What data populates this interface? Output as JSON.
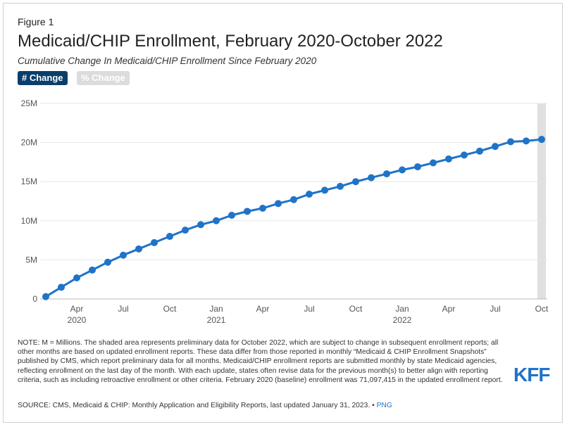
{
  "header": {
    "figure_label": "Figure 1",
    "title": "Medicaid/CHIP Enrollment, February 2020-October 2022",
    "subtitle": "Cumulative Change In Medicaid/CHIP Enrollment Since February 2020"
  },
  "toggles": {
    "count_label": "# Change",
    "percent_label": "% Change"
  },
  "footer": {
    "note": "NOTE: M = Millions. The shaded area represents preliminary data for October 2022, which are subject to change in subsequent enrollment reports; all other months are based on updated enrollment reports. These data differ from those reported in monthly “Medicaid & CHIP Enrollment Snapshots” published by CMS, which report preliminary data for all months. Medicaid/CHIP enrollment reports are submitted monthly by state Medicaid agencies, reflecting enrollment on the last day of the month. With each update, states often revise data for the previous month(s) to better align with reporting criteria, such as including retroactive enrollment or other criteria. February 2020 (baseline) enrollment was 71,097,415 in the updated enrollment report.",
    "source": "SOURCE: CMS, Medicaid & CHIP: Monthly Application and Eligibility Reports, last updated January 31, 2023. •",
    "png_link": "PNG"
  },
  "logo": {
    "text": "KFF",
    "color": "#1f73c8"
  },
  "chart_data": {
    "type": "line",
    "color": "#1f73c8",
    "shaded_color": "#e0e0e0",
    "shaded_period": "Oct 2022",
    "ylim": [
      0,
      25000000
    ],
    "y_ticks": [
      0,
      5000000,
      10000000,
      15000000,
      20000000,
      25000000
    ],
    "y_tick_labels": [
      "0",
      "5M",
      "10M",
      "15M",
      "20M",
      "25M"
    ],
    "x_tick_labels": [
      {
        "month": "Apr",
        "year": "2020",
        "index": 2
      },
      {
        "month": "Jul",
        "year": "",
        "index": 5
      },
      {
        "month": "Oct",
        "year": "",
        "index": 8
      },
      {
        "month": "Jan",
        "year": "2021",
        "index": 11
      },
      {
        "month": "Apr",
        "year": "",
        "index": 14
      },
      {
        "month": "Jul",
        "year": "",
        "index": 17
      },
      {
        "month": "Oct",
        "year": "",
        "index": 20
      },
      {
        "month": "Jan",
        "year": "2022",
        "index": 23
      },
      {
        "month": "Apr",
        "year": "",
        "index": 26
      },
      {
        "month": "Jul",
        "year": "",
        "index": 29
      },
      {
        "month": "Oct",
        "year": "",
        "index": 32
      }
    ],
    "x": [
      "Feb 2020",
      "Mar 2020",
      "Apr 2020",
      "May 2020",
      "Jun 2020",
      "Jul 2020",
      "Aug 2020",
      "Sep 2020",
      "Oct 2020",
      "Nov 2020",
      "Dec 2020",
      "Jan 2021",
      "Feb 2021",
      "Mar 2021",
      "Apr 2021",
      "May 2021",
      "Jun 2021",
      "Jul 2021",
      "Aug 2021",
      "Sep 2021",
      "Oct 2021",
      "Nov 2021",
      "Dec 2021",
      "Jan 2022",
      "Feb 2022",
      "Mar 2022",
      "Apr 2022",
      "May 2022",
      "Jun 2022",
      "Jul 2022",
      "Aug 2022",
      "Sep 2022",
      "Oct 2022"
    ],
    "values": [
      300000,
      1500000,
      2700000,
      3700000,
      4700000,
      5600000,
      6400000,
      7200000,
      8000000,
      8800000,
      9500000,
      10000000,
      10700000,
      11200000,
      11600000,
      12200000,
      12700000,
      13400000,
      13900000,
      14400000,
      15000000,
      15500000,
      16000000,
      16500000,
      16900000,
      17400000,
      17900000,
      18400000,
      18900000,
      19500000,
      20100000,
      20200000,
      20400000
    ]
  }
}
